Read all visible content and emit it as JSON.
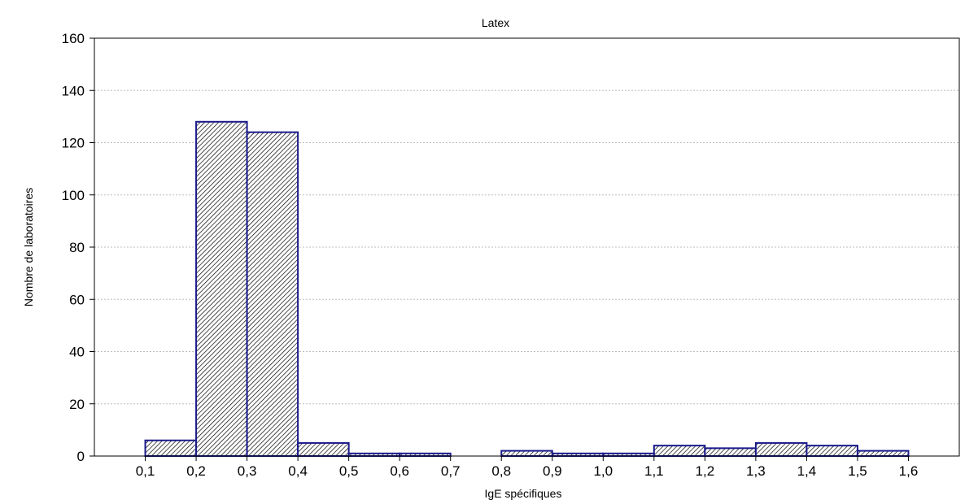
{
  "chart_data": {
    "type": "bar",
    "title": "Latex",
    "xlabel": "IgE spécifiques",
    "ylabel": "Nombre de laboratoires",
    "ylim": [
      0,
      160
    ],
    "yticks": [
      0,
      20,
      40,
      60,
      80,
      100,
      120,
      140,
      160
    ],
    "xlim": [
      0.0,
      1.7
    ],
    "xtick_values": [
      0.1,
      0.2,
      0.3,
      0.4,
      0.5,
      0.6,
      0.7,
      0.8,
      0.9,
      1.0,
      1.1,
      1.2,
      1.3,
      1.4,
      1.5,
      1.6
    ],
    "xtick_labels": [
      "0,1",
      "0,2",
      "0,3",
      "0,4",
      "0,5",
      "0,6",
      "0,7",
      "0,8",
      "0,9",
      "1,0",
      "1,1",
      "1,2",
      "1,3",
      "1,4",
      "1,5",
      "1,6"
    ],
    "bins": [
      {
        "start": 0.1,
        "end": 0.2,
        "value": 6
      },
      {
        "start": 0.2,
        "end": 0.3,
        "value": 128
      },
      {
        "start": 0.3,
        "end": 0.4,
        "value": 124
      },
      {
        "start": 0.4,
        "end": 0.5,
        "value": 5
      },
      {
        "start": 0.5,
        "end": 0.6,
        "value": 1
      },
      {
        "start": 0.6,
        "end": 0.7,
        "value": 1
      },
      {
        "start": 0.7,
        "end": 0.8,
        "value": 0
      },
      {
        "start": 0.8,
        "end": 0.9,
        "value": 2
      },
      {
        "start": 0.9,
        "end": 1.0,
        "value": 1
      },
      {
        "start": 1.0,
        "end": 1.1,
        "value": 1
      },
      {
        "start": 1.1,
        "end": 1.2,
        "value": 4
      },
      {
        "start": 1.2,
        "end": 1.3,
        "value": 3
      },
      {
        "start": 1.3,
        "end": 1.4,
        "value": 5
      },
      {
        "start": 1.4,
        "end": 1.5,
        "value": 4
      },
      {
        "start": 1.5,
        "end": 1.6,
        "value": 2
      }
    ],
    "grid": true,
    "bar_fill": "hatched",
    "colors": {
      "bar_stroke": "#1a1a8c",
      "hatch": "#000000",
      "grid": "#bdbdbd",
      "axis": "#000000"
    }
  }
}
